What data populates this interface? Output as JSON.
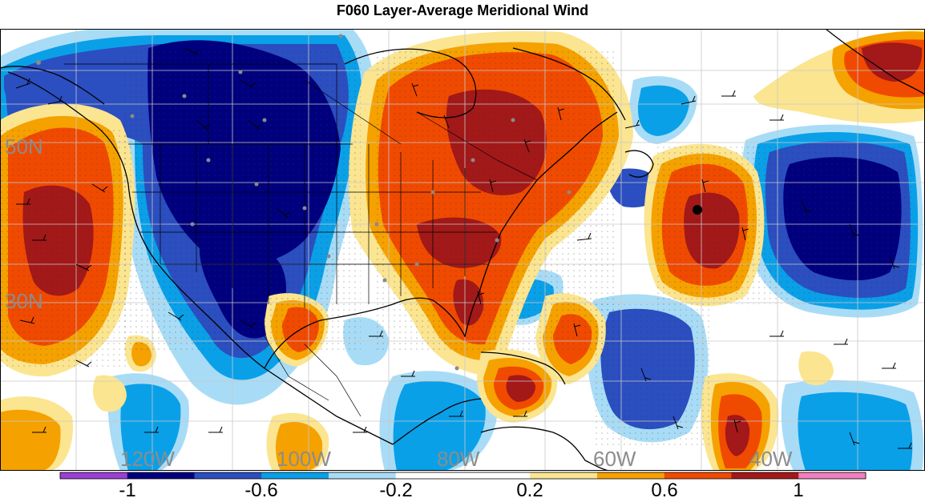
{
  "title": "F060 Layer-Average Meridional Wind",
  "map": {
    "lat_labels": [
      "50N",
      "30N"
    ],
    "lon_labels": [
      "120W",
      "100W",
      "80W",
      "60W",
      "40W"
    ],
    "label_color": "#8c8c8c"
  },
  "colorbar": {
    "colors": [
      "#9a3fd1",
      "#00007f",
      "#2b4ec0",
      "#0aa0e8",
      "#a8dcf6",
      "#ffffff",
      "#ffffff",
      "#fbe590",
      "#f5a100",
      "#f04a00",
      "#a31818",
      "#ef7fbe"
    ],
    "tick_labels": [
      "-1",
      "-0.6",
      "-0.2",
      "0.2",
      "0.6",
      "1"
    ]
  },
  "legend_colors": {
    "strong_south": "#00007f",
    "south": "#2b4ec0",
    "weak_south": "#0aa0e8",
    "slight_south": "#a8dcf6",
    "slight_north": "#fbe590",
    "weak_north": "#f5a100",
    "north": "#f04a00",
    "strong_north": "#a31818"
  }
}
